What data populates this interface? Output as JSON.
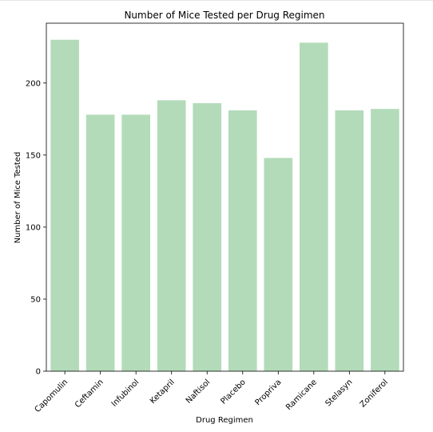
{
  "chart_data": {
    "type": "bar",
    "title": "Number of Mice Tested per Drug Regimen",
    "xlabel": "Drug Regimen",
    "ylabel": "Number of Mice Tested",
    "categories": [
      "Capomulin",
      "Ceftamin",
      "Infubinol",
      "Ketapril",
      "Naftisol",
      "Placebo",
      "Propriva",
      "Ramicane",
      "Stelasyn",
      "Zoniferol"
    ],
    "values": [
      230,
      178,
      178,
      188,
      186,
      181,
      148,
      228,
      181,
      182
    ],
    "ylim": [
      0,
      241.5
    ],
    "yticks": [
      0,
      50,
      100,
      150,
      200
    ],
    "bar_color": "#b3dbb9",
    "grid": false,
    "legend": "none"
  }
}
